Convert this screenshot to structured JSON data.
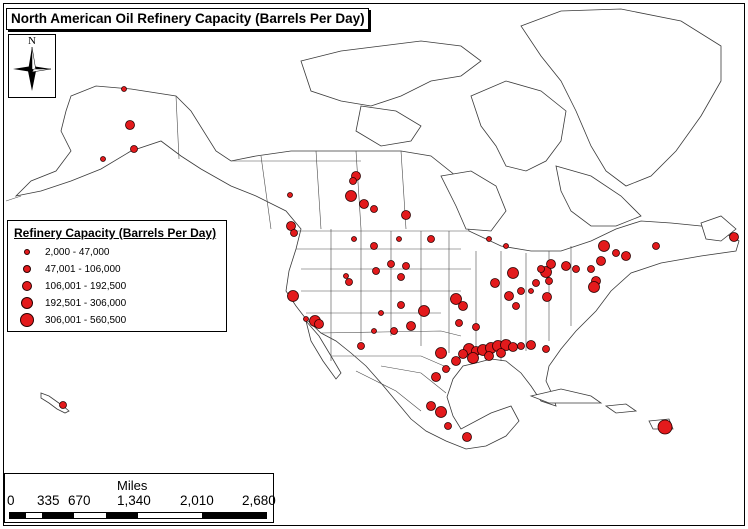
{
  "title": "North American Oil Refinery Capacity (Barrels Per Day)",
  "north_arrow": {
    "label": "N",
    "icon": "north-arrow-icon"
  },
  "legend": {
    "title": "Refinery Capacity (Barrels Per Day)",
    "classes": [
      {
        "label": "2,000 - 47,000"
      },
      {
        "label": "47,001 - 106,000"
      },
      {
        "label": "106,001 - 192,500"
      },
      {
        "label": "192,501 - 306,000"
      },
      {
        "label": "306,001 - 560,500"
      }
    ]
  },
  "scale_bar": {
    "title": "Miles",
    "ticks": [
      "0",
      "335",
      "670",
      "1,340",
      "2,010",
      "2,680"
    ]
  },
  "colors": {
    "refinery_fill": "#e31a1c",
    "refinery_outline": "#2b0000",
    "land": "#ffffff",
    "outline": "#3a3a3a"
  }
}
